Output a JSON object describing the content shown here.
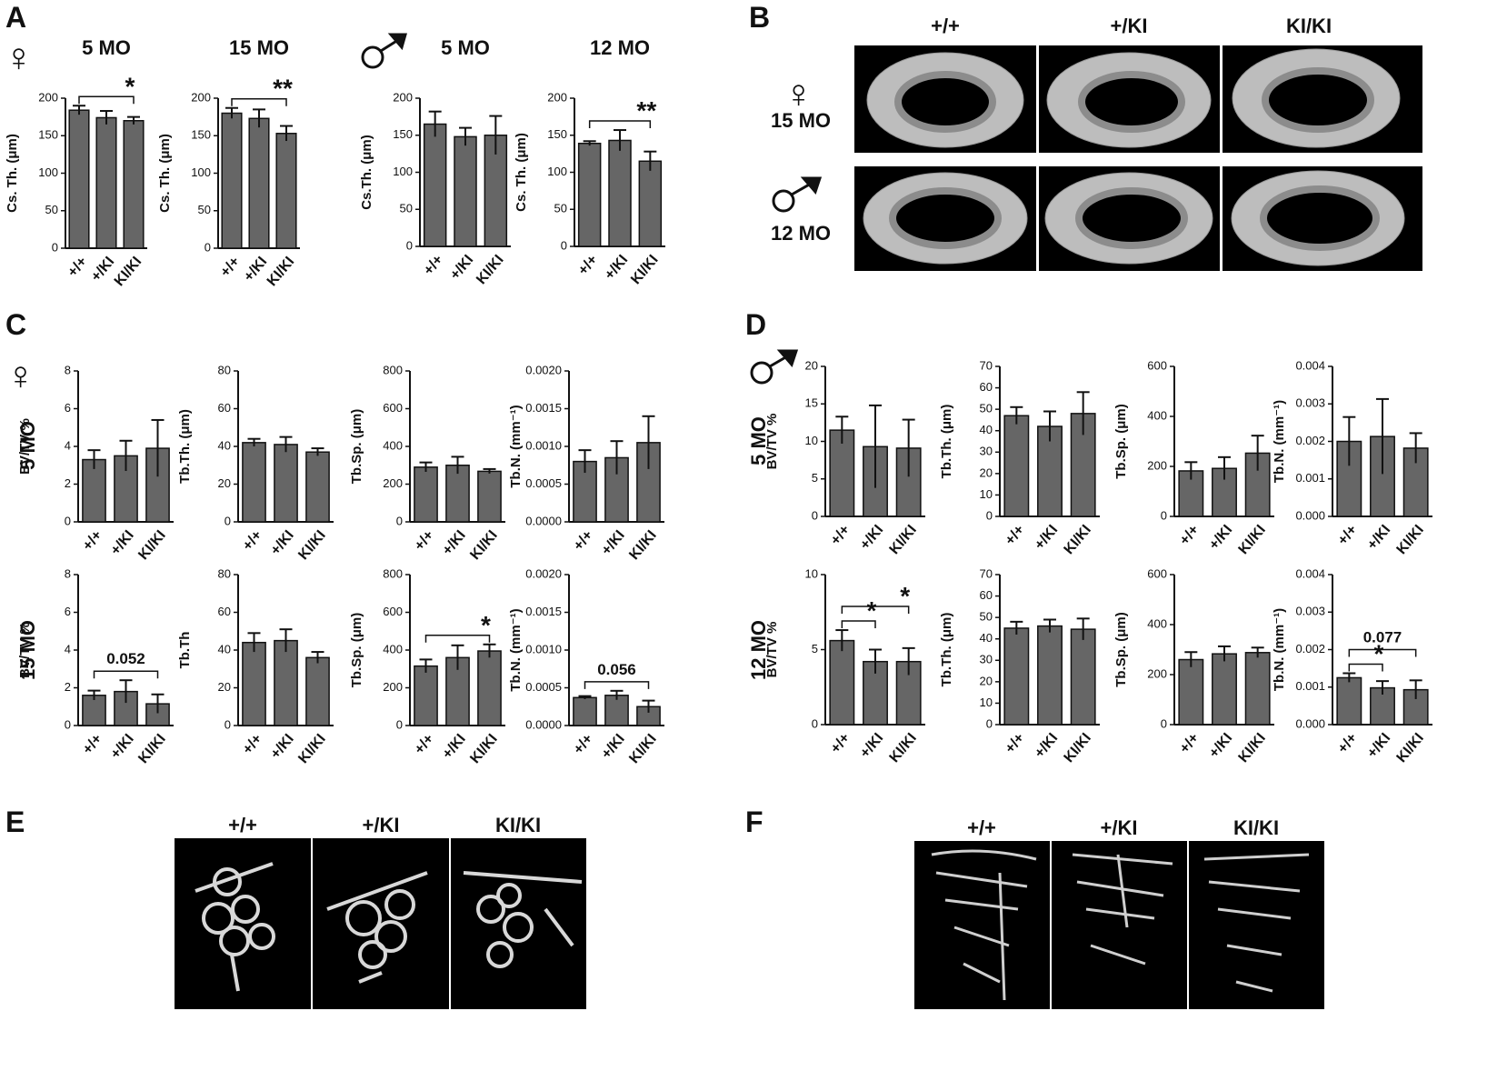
{
  "figure": {
    "panel_letters": [
      "A",
      "B",
      "C",
      "D",
      "E",
      "F"
    ],
    "female_symbol": "♀",
    "genotypes": [
      "+/+",
      "+/KI",
      "KI/KI"
    ],
    "b_rows": [
      "15 MO",
      "12 MO"
    ],
    "c_rows": [
      "5 MO",
      "15 MO"
    ],
    "d_rows": [
      "5 MO",
      "12 MO"
    ]
  },
  "chart_data": [
    {
      "type": "bar",
      "title": "5 MO",
      "ylabel": "Cs. Th. (μm)",
      "categories": [
        "+/+",
        "+/KI",
        "KI/KI"
      ],
      "values": [
        184,
        174,
        170
      ],
      "errors": [
        6,
        9,
        5
      ],
      "ylim": [
        0,
        200
      ],
      "yticks": [
        0,
        50,
        100,
        150,
        200
      ],
      "color": "#666666",
      "comparisons": [
        {
          "label": "*",
          "groups": [
            0,
            2
          ]
        }
      ]
    },
    {
      "type": "bar",
      "title": "15 MO",
      "ylabel": "Cs. Th. (μm)",
      "categories": [
        "+/+",
        "+/KI",
        "KI/KI"
      ],
      "values": [
        180,
        173,
        153
      ],
      "errors": [
        7,
        12,
        10
      ],
      "ylim": [
        0,
        200
      ],
      "yticks": [
        0,
        50,
        100,
        150,
        200
      ],
      "color": "#666666",
      "comparisons": [
        {
          "label": "**",
          "groups": [
            0,
            2
          ]
        }
      ]
    },
    {
      "type": "bar",
      "title": "5 MO",
      "ylabel": "Cs.Th. (μm)",
      "categories": [
        "+/+",
        "+/KI",
        "KI/KI"
      ],
      "values": [
        165,
        148,
        150
      ],
      "errors": [
        17,
        12,
        26
      ],
      "ylim": [
        0,
        200
      ],
      "yticks": [
        0,
        50,
        100,
        150,
        200
      ],
      "color": "#666666",
      "comparisons": []
    },
    {
      "type": "bar",
      "title": "12 MO",
      "ylabel": "Cs. Th. (μm)",
      "categories": [
        "+/+",
        "+/KI",
        "KI/KI"
      ],
      "values": [
        139,
        143,
        115
      ],
      "errors": [
        3,
        14,
        13
      ],
      "ylim": [
        0,
        200
      ],
      "yticks": [
        0,
        50,
        100,
        150,
        200
      ],
      "color": "#666666",
      "comparisons": [
        {
          "label": "**",
          "groups": [
            0,
            2
          ]
        }
      ]
    },
    {
      "type": "bar",
      "ylabel": "BV/TV %",
      "categories": [
        "+/+",
        "+/KI",
        "KI/KI"
      ],
      "values": [
        3.3,
        3.5,
        3.9
      ],
      "errors": [
        0.5,
        0.8,
        1.5
      ],
      "ylim": [
        0,
        8
      ],
      "yticks": [
        0,
        2,
        4,
        6,
        8
      ],
      "color": "#666666",
      "comparisons": []
    },
    {
      "type": "bar",
      "ylabel": "Tb.Th. (μm)",
      "categories": [
        "+/+",
        "+/KI",
        "KI/KI"
      ],
      "values": [
        42,
        41,
        37
      ],
      "errors": [
        2,
        4,
        2
      ],
      "ylim": [
        0,
        80
      ],
      "yticks": [
        0,
        20,
        40,
        60,
        80
      ],
      "color": "#666666",
      "comparisons": []
    },
    {
      "type": "bar",
      "ylabel": "Tb.Sp. (μm)",
      "categories": [
        "+/+",
        "+/KI",
        "KI/KI"
      ],
      "values": [
        290,
        300,
        268
      ],
      "errors": [
        25,
        45,
        12
      ],
      "ylim": [
        0,
        800
      ],
      "yticks": [
        0,
        200,
        400,
        600,
        800
      ],
      "color": "#666666",
      "comparisons": []
    },
    {
      "type": "bar",
      "ylabel": "Tb.N. (mm⁻¹)",
      "categories": [
        "+/+",
        "+/KI",
        "KI/KI"
      ],
      "values": [
        0.0008,
        0.00085,
        0.00105
      ],
      "errors": [
        0.00015,
        0.00022,
        0.00035
      ],
      "ylim": [
        0,
        0.002
      ],
      "yticks": [
        {
          "value": 0,
          "label": "0.0000"
        },
        0.0005,
        {
          "value": 0.001,
          "label": "0.0010"
        },
        0.0015,
        {
          "value": 0.002,
          "label": "0.0020"
        }
      ],
      "color": "#666666",
      "comparisons": []
    },
    {
      "type": "bar",
      "ylabel": "BV/TV %",
      "categories": [
        "+/+",
        "+/KI",
        "KI/KI"
      ],
      "values": [
        1.6,
        1.8,
        1.15
      ],
      "errors": [
        0.25,
        0.6,
        0.5
      ],
      "ylim": [
        0,
        8
      ],
      "yticks": [
        0,
        2,
        4,
        6,
        8
      ],
      "color": "#666666",
      "comparisons": [
        {
          "label": "0.052",
          "groups": [
            0,
            2
          ]
        }
      ]
    },
    {
      "type": "bar",
      "ylabel": "Tb.Th",
      "categories": [
        "+/+",
        "+/KI",
        "KI/KI"
      ],
      "values": [
        44,
        45,
        36
      ],
      "errors": [
        5,
        6,
        3
      ],
      "ylim": [
        0,
        80
      ],
      "yticks": [
        0,
        20,
        40,
        60,
        80
      ],
      "color": "#666666",
      "comparisons": []
    },
    {
      "type": "bar",
      "ylabel": "Tb.Sp. (μm)",
      "categories": [
        "+/+",
        "+/KI",
        "KI/KI"
      ],
      "values": [
        315,
        360,
        395
      ],
      "errors": [
        35,
        65,
        35
      ],
      "ylim": [
        0,
        800
      ],
      "yticks": [
        0,
        200,
        400,
        600,
        800
      ],
      "color": "#666666",
      "comparisons": [
        {
          "label": "*",
          "groups": [
            0,
            2
          ]
        }
      ]
    },
    {
      "type": "bar",
      "ylabel": "Tb.N. (mm⁻¹)",
      "categories": [
        "+/+",
        "+/KI",
        "KI/KI"
      ],
      "values": [
        0.00037,
        0.0004,
        0.00025
      ],
      "errors": [
        2e-05,
        6e-05,
        8e-05
      ],
      "ylim": [
        0,
        0.002
      ],
      "yticks": [
        {
          "value": 0,
          "label": "0.0000"
        },
        0.0005,
        {
          "value": 0.001,
          "label": "0.0010"
        },
        0.0015,
        {
          "value": 0.002,
          "label": "0.0020"
        }
      ],
      "color": "#666666",
      "comparisons": [
        {
          "label": "0.056",
          "groups": [
            0,
            2
          ]
        }
      ]
    },
    {
      "type": "bar",
      "ylabel": "BV/TV %",
      "categories": [
        "+/+",
        "+/KI",
        "KI/KI"
      ],
      "values": [
        11.5,
        9.3,
        9.1
      ],
      "errors": [
        1.8,
        5.5,
        3.8
      ],
      "ylim": [
        0,
        20
      ],
      "yticks": [
        0,
        5,
        10,
        15,
        20
      ],
      "color": "#666666",
      "comparisons": []
    },
    {
      "type": "bar",
      "ylabel": "Tb.Th. (μm)",
      "categories": [
        "+/+",
        "+/KI",
        "KI/KI"
      ],
      "values": [
        47,
        42,
        48
      ],
      "errors": [
        4,
        7,
        10
      ],
      "ylim": [
        0,
        70
      ],
      "yticks": [
        0,
        10,
        20,
        30,
        40,
        50,
        60,
        70
      ],
      "color": "#666666",
      "comparisons": []
    },
    {
      "type": "bar",
      "ylabel": "Tb.Sp. (μm)",
      "categories": [
        "+/+",
        "+/KI",
        "KI/KI"
      ],
      "values": [
        182,
        192,
        253
      ],
      "errors": [
        35,
        45,
        70
      ],
      "ylim": [
        0,
        600
      ],
      "yticks": [
        0,
        200,
        400,
        600
      ],
      "color": "#666666",
      "comparisons": []
    },
    {
      "type": "bar",
      "ylabel": "Tb.N. (mm⁻¹)",
      "categories": [
        "+/+",
        "+/KI",
        "KI/KI"
      ],
      "values": [
        0.002,
        0.00213,
        0.00182
      ],
      "errors": [
        0.00065,
        0.001,
        0.0004
      ],
      "ylim": [
        0,
        0.004
      ],
      "yticks": [
        {
          "value": 0,
          "label": "0.000"
        },
        0.001,
        0.002,
        0.003,
        0.004
      ],
      "color": "#666666",
      "comparisons": []
    },
    {
      "type": "bar",
      "ylabel": "BV/TV %",
      "categories": [
        "+/+",
        "+/KI",
        "KI/KI"
      ],
      "values": [
        5.6,
        4.2,
        4.2
      ],
      "errors": [
        0.7,
        0.8,
        0.9
      ],
      "ylim": [
        0,
        10
      ],
      "yticks": [
        0,
        5,
        10
      ],
      "color": "#666666",
      "comparisons": [
        {
          "label": "*",
          "groups": [
            0,
            1
          ]
        },
        {
          "label": "*",
          "groups": [
            0,
            2
          ]
        }
      ]
    },
    {
      "type": "bar",
      "ylabel": "Tb.Th. (μm)",
      "categories": [
        "+/+",
        "+/KI",
        "KI/KI"
      ],
      "values": [
        45,
        46,
        44.5
      ],
      "errors": [
        3,
        3,
        5
      ],
      "ylim": [
        0,
        70
      ],
      "yticks": [
        0,
        10,
        20,
        30,
        40,
        50,
        60,
        70
      ],
      "color": "#666666",
      "comparisons": []
    },
    {
      "type": "bar",
      "ylabel": "Tb.Sp. (μm)",
      "categories": [
        "+/+",
        "+/KI",
        "KI/KI"
      ],
      "values": [
        260,
        283,
        288
      ],
      "errors": [
        30,
        30,
        20
      ],
      "ylim": [
        0,
        600
      ],
      "yticks": [
        0,
        200,
        400,
        600
      ],
      "color": "#666666",
      "comparisons": []
    },
    {
      "type": "bar",
      "ylabel": "Tb.N. (mm⁻¹)",
      "categories": [
        "+/+",
        "+/KI",
        "KI/KI"
      ],
      "values": [
        0.00125,
        0.00098,
        0.00093
      ],
      "errors": [
        0.00012,
        0.00018,
        0.00025
      ],
      "ylim": [
        0,
        0.004
      ],
      "yticks": [
        {
          "value": 0,
          "label": "0.000"
        },
        0.001,
        0.002,
        0.003,
        0.004
      ],
      "color": "#666666",
      "comparisons": [
        {
          "label": "*",
          "groups": [
            0,
            1
          ]
        },
        {
          "label": "0.077",
          "groups": [
            0,
            2
          ]
        }
      ]
    }
  ]
}
